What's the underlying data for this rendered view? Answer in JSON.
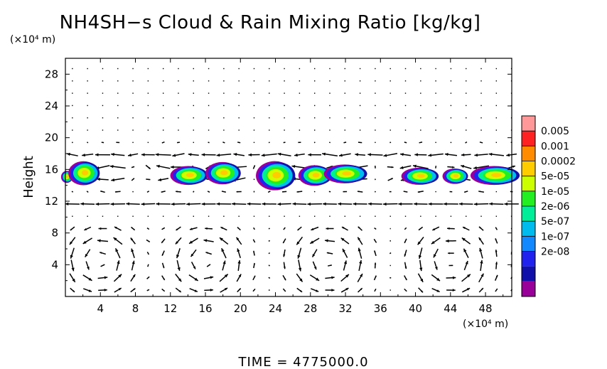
{
  "chart_data": {
    "type": "heatmap",
    "title": "NH4SH−s Cloud & Rain Mixing Ratio [kg/kg]",
    "ylabel": "Height",
    "y_unit": "(×10⁴ m)",
    "x_unit": "(×10⁴ m)",
    "xlim": [
      0,
      51
    ],
    "ylim": [
      0,
      30
    ],
    "x_ticks": [
      "4",
      "8",
      "12",
      "16",
      "20",
      "24",
      "28",
      "32",
      "36",
      "40",
      "44",
      "48"
    ],
    "y_ticks": [
      "4",
      "8",
      "12",
      "16",
      "20",
      "24",
      "28"
    ],
    "colorbar": {
      "labels": [
        "0.005",
        "0.001",
        "0.0002",
        "5e-05",
        "1e-05",
        "2e-06",
        "5e-07",
        "1e-07",
        "2e-08"
      ],
      "colors": [
        "#ff9999",
        "#ff2222",
        "#ff8c00",
        "#ffcc00",
        "#ccff00",
        "#22ee22",
        "#00ee99",
        "#00bbee",
        "#1188ff",
        "#2222ee",
        "#1111aa",
        "#990099"
      ]
    },
    "cloud_blobs": [
      {
        "x": 0.2,
        "y": 15.1,
        "rx": 0.6,
        "ry": 0.7
      },
      {
        "x": 2.2,
        "y": 15.6,
        "rx": 1.6,
        "ry": 1.4
      },
      {
        "x": 14.2,
        "y": 15.3,
        "rx": 1.9,
        "ry": 1.1
      },
      {
        "x": 18.1,
        "y": 15.6,
        "rx": 1.8,
        "ry": 1.3
      },
      {
        "x": 24.1,
        "y": 15.3,
        "rx": 2.0,
        "ry": 1.7
      },
      {
        "x": 28.6,
        "y": 15.3,
        "rx": 1.7,
        "ry": 1.2
      },
      {
        "x": 32.1,
        "y": 15.5,
        "rx": 2.2,
        "ry": 1.1
      },
      {
        "x": 40.6,
        "y": 15.2,
        "rx": 1.9,
        "ry": 1.0
      },
      {
        "x": 44.6,
        "y": 15.2,
        "rx": 1.3,
        "ry": 0.9
      },
      {
        "x": 49.2,
        "y": 15.3,
        "rx": 2.5,
        "ry": 1.1
      }
    ],
    "footer": "TIME  =  4775000.0"
  }
}
